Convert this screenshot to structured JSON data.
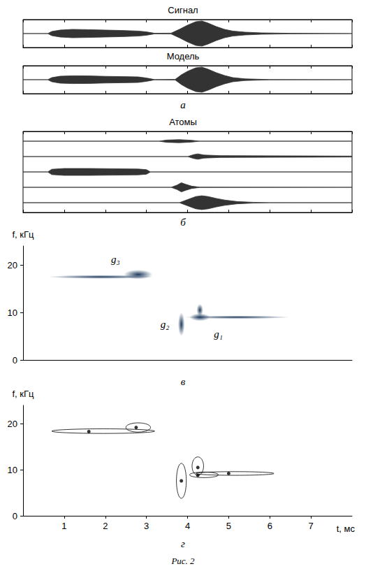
{
  "chart_data": [
    {
      "type": "envelope",
      "letter": "а",
      "xlim": [
        0,
        8
      ],
      "xticks": [
        0,
        1,
        2,
        3,
        4,
        5,
        6,
        7,
        8
      ],
      "ylim": [
        -1,
        1
      ],
      "tick_labels": false,
      "color": "#333333",
      "traces": [
        {
          "title": "Сигнал",
          "x": [
            0,
            0.6,
            0.7,
            0.9,
            1.2,
            1.6,
            2.0,
            2.4,
            2.8,
            3.0,
            3.2,
            3.6,
            3.8,
            4.0,
            4.2,
            4.35,
            4.5,
            4.7,
            4.9,
            5.1,
            5.4,
            5.8,
            6.5,
            8
          ],
          "values": [
            0,
            0,
            0.15,
            0.25,
            0.3,
            0.28,
            0.25,
            0.22,
            0.18,
            0.12,
            0.02,
            0.03,
            0.3,
            0.6,
            0.85,
            0.9,
            0.75,
            0.5,
            0.3,
            0.18,
            0.1,
            0.05,
            0.02,
            0
          ]
        },
        {
          "title": "Модель",
          "x": [
            0,
            0.6,
            0.7,
            0.9,
            1.2,
            1.6,
            2.0,
            2.4,
            2.8,
            3.0,
            3.2,
            3.7,
            3.85,
            4.0,
            4.2,
            4.35,
            4.5,
            4.7,
            4.9,
            5.1,
            5.4,
            6.0,
            8
          ],
          "values": [
            0,
            0,
            0.15,
            0.25,
            0.28,
            0.27,
            0.24,
            0.22,
            0.2,
            0.12,
            0.01,
            0.02,
            0.35,
            0.6,
            0.85,
            0.9,
            0.75,
            0.5,
            0.3,
            0.15,
            0.06,
            0.01,
            0
          ]
        }
      ]
    },
    {
      "type": "envelope",
      "letter": "б",
      "title": "Атомы",
      "xlim": [
        0,
        8
      ],
      "xticks": [
        0,
        1,
        2,
        3,
        4,
        5,
        6,
        7,
        8
      ],
      "ylim": [
        -1,
        1
      ],
      "tick_labels": false,
      "color": "#333333",
      "traces": [
        {
          "x": [
            0,
            3.3,
            3.5,
            3.8,
            4.1,
            4.3,
            8
          ],
          "values": [
            0,
            0,
            0.15,
            0.2,
            0.12,
            0,
            0
          ]
        },
        {
          "x": [
            0,
            4.0,
            4.15,
            4.25,
            4.4,
            4.8,
            6,
            7,
            8
          ],
          "values": [
            0,
            0,
            0.25,
            0.35,
            0.2,
            0.12,
            0.1,
            0.08,
            0.06
          ]
        },
        {
          "x": [
            0,
            0.6,
            0.7,
            1.0,
            1.6,
            2.2,
            2.8,
            3.0,
            3.1,
            8
          ],
          "values": [
            0,
            0,
            0.35,
            0.45,
            0.45,
            0.42,
            0.38,
            0.3,
            0,
            0
          ]
        },
        {
          "x": [
            0,
            3.6,
            3.75,
            3.85,
            3.95,
            4.1,
            4.3,
            8
          ],
          "values": [
            0,
            0,
            0.3,
            0.6,
            0.4,
            0.15,
            0.02,
            0
          ]
        },
        {
          "x": [
            0,
            3.8,
            4.0,
            4.2,
            4.35,
            4.5,
            4.7,
            4.9,
            5.2,
            5.6,
            6,
            8
          ],
          "values": [
            0,
            0,
            0.4,
            0.8,
            0.9,
            0.8,
            0.55,
            0.35,
            0.15,
            0.05,
            0.01,
            0
          ]
        }
      ]
    },
    {
      "type": "time_frequency",
      "letter": "в",
      "y_label": "f, кГц",
      "xlim": [
        0,
        8
      ],
      "ylim": [
        0,
        24
      ],
      "yticks": [
        0,
        10,
        20
      ],
      "tick_labels": "y",
      "color": "#1d3a5c",
      "blobs": [
        {
          "t": 1.9,
          "f": 17.5,
          "dt": 1.3,
          "df": 0.4
        },
        {
          "t": 2.8,
          "f": 18,
          "dt": 0.35,
          "df": 1.0
        },
        {
          "t": 3.85,
          "f": 7.5,
          "dt": 0.08,
          "df": 2.5
        },
        {
          "t": 4.3,
          "f": 10.5,
          "dt": 0.08,
          "df": 1.3
        },
        {
          "t": 5.2,
          "f": 9,
          "dt": 1.3,
          "df": 0.35
        },
        {
          "t": 4.3,
          "f": 9,
          "dt": 0.25,
          "df": 0.8
        }
      ],
      "annotations": [
        {
          "text": "g₁",
          "t": 4.75,
          "f": 5.5
        },
        {
          "text": "g₂",
          "t": 3.45,
          "f": 7.5
        },
        {
          "text": "g₃",
          "t": 2.25,
          "f": 21.2
        }
      ]
    },
    {
      "type": "scatter",
      "letter": "г",
      "x_label": "t, мс",
      "y_label": "f, кГц",
      "xlim": [
        0,
        8
      ],
      "xticks": [
        1,
        2,
        3,
        4,
        5,
        6,
        7
      ],
      "ylim": [
        0,
        24
      ],
      "yticks": [
        0,
        10,
        20
      ],
      "color": "#000000",
      "x": [
        1.6,
        2.75,
        3.85,
        4.25,
        4.25,
        5.0
      ],
      "values": [
        18.3,
        19.2,
        7.6,
        10.5,
        8.8,
        9.2
      ],
      "ellipses": [
        {
          "t": 1.95,
          "f": 18.4,
          "dt": 1.25,
          "df": 0.5
        },
        {
          "t": 2.8,
          "f": 19.2,
          "dt": 0.3,
          "df": 1.0
        },
        {
          "t": 3.85,
          "f": 7.6,
          "dt": 0.12,
          "df": 3.8
        },
        {
          "t": 4.25,
          "f": 10.8,
          "dt": 0.14,
          "df": 2.0
        },
        {
          "t": 4.4,
          "f": 8.9,
          "dt": 0.35,
          "df": 0.6
        },
        {
          "t": 5.15,
          "f": 9.2,
          "dt": 0.95,
          "df": 0.4
        }
      ]
    }
  ],
  "caption": "Рис. 2"
}
